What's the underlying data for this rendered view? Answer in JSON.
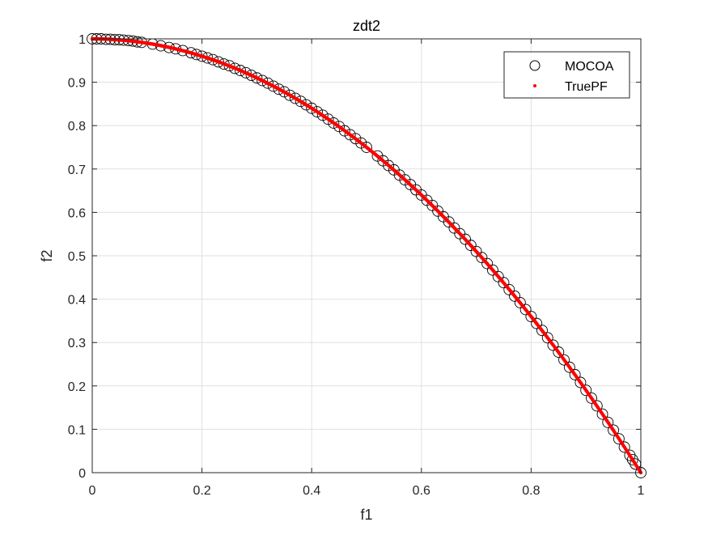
{
  "chart_data": {
    "type": "scatter",
    "title": "zdt2",
    "xlabel": "f1",
    "ylabel": "f2",
    "xlim": [
      0,
      1
    ],
    "ylim": [
      0,
      1
    ],
    "xticks": [
      "0",
      "0.2",
      "0.4",
      "0.6",
      "0.8",
      "1"
    ],
    "yticks": [
      "0",
      "0.1",
      "0.2",
      "0.3",
      "0.4",
      "0.5",
      "0.6",
      "0.7",
      "0.8",
      "0.9",
      "1"
    ],
    "grid": true,
    "legend_position": "top-right",
    "colors": {
      "mocoa": "#000000",
      "truepf": "#ff0000",
      "grid": "#e0e0e0",
      "axes": "#262626"
    },
    "series": [
      {
        "name": "MOCOA",
        "marker": "open-circle",
        "x": [
          0.0,
          0.008,
          0.016,
          0.025,
          0.033,
          0.041,
          0.049,
          0.057,
          0.066,
          0.074,
          0.082,
          0.09,
          0.11,
          0.125,
          0.14,
          0.152,
          0.165,
          0.18,
          0.19,
          0.2,
          0.21,
          0.22,
          0.23,
          0.24,
          0.25,
          0.26,
          0.27,
          0.28,
          0.29,
          0.3,
          0.31,
          0.32,
          0.33,
          0.34,
          0.35,
          0.36,
          0.37,
          0.38,
          0.39,
          0.4,
          0.41,
          0.42,
          0.43,
          0.44,
          0.45,
          0.46,
          0.47,
          0.48,
          0.49,
          0.5,
          0.52,
          0.53,
          0.54,
          0.55,
          0.56,
          0.57,
          0.58,
          0.59,
          0.6,
          0.61,
          0.62,
          0.63,
          0.64,
          0.65,
          0.66,
          0.67,
          0.68,
          0.69,
          0.7,
          0.71,
          0.72,
          0.73,
          0.74,
          0.75,
          0.76,
          0.77,
          0.78,
          0.79,
          0.8,
          0.81,
          0.82,
          0.83,
          0.84,
          0.85,
          0.86,
          0.87,
          0.88,
          0.89,
          0.9,
          0.91,
          0.92,
          0.93,
          0.94,
          0.95,
          0.96,
          0.97,
          0.98,
          0.985,
          0.99,
          1.0
        ],
        "y": [
          1.0,
          1.0,
          1.0,
          0.999,
          0.999,
          0.998,
          0.998,
          0.997,
          0.996,
          0.995,
          0.993,
          0.992,
          0.988,
          0.984,
          0.98,
          0.977,
          0.973,
          0.968,
          0.964,
          0.96,
          0.956,
          0.952,
          0.947,
          0.942,
          0.938,
          0.932,
          0.927,
          0.922,
          0.916,
          0.91,
          0.904,
          0.898,
          0.891,
          0.884,
          0.878,
          0.87,
          0.863,
          0.856,
          0.848,
          0.84,
          0.832,
          0.824,
          0.815,
          0.806,
          0.798,
          0.788,
          0.779,
          0.77,
          0.76,
          0.75,
          0.73,
          0.719,
          0.708,
          0.698,
          0.686,
          0.675,
          0.664,
          0.652,
          0.64,
          0.628,
          0.616,
          0.603,
          0.59,
          0.578,
          0.564,
          0.551,
          0.538,
          0.524,
          0.51,
          0.496,
          0.482,
          0.467,
          0.452,
          0.438,
          0.422,
          0.407,
          0.392,
          0.376,
          0.36,
          0.344,
          0.328,
          0.311,
          0.294,
          0.278,
          0.26,
          0.243,
          0.226,
          0.208,
          0.19,
          0.172,
          0.154,
          0.135,
          0.116,
          0.098,
          0.078,
          0.059,
          0.04,
          0.03,
          0.02,
          0.0
        ]
      },
      {
        "name": "TruePF",
        "marker": "dot",
        "x": [],
        "y": [],
        "formula": "f2 = 1 - f1^2"
      }
    ],
    "legend": [
      "MOCOA",
      "TruePF"
    ]
  }
}
